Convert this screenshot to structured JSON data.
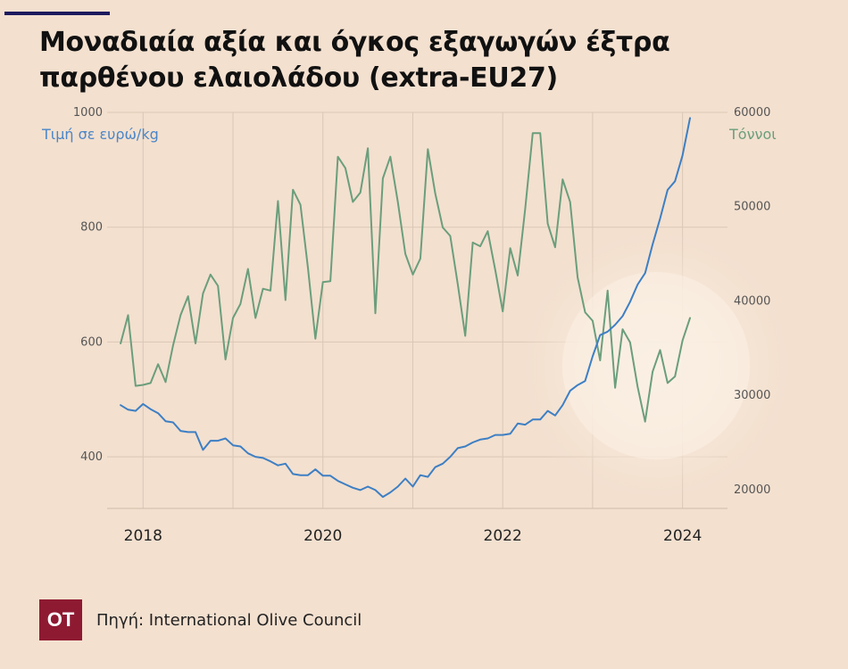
{
  "title": "Μοναδιαία αξία και όγκος εξαγωγών έξτρα παρθένου ελαιολάδου (extra-EU27)",
  "source": "Πηγή: International Olive Council",
  "logo_text": "ΟΤ",
  "colors": {
    "price": "#3d7fc4",
    "volume": "#6b9e7c",
    "background": "#f3e0cf",
    "logo": "#8e1a32",
    "rule": "#1c1a5e"
  },
  "chart_data": {
    "type": "line",
    "x_ticks": [
      "2018",
      "2020",
      "2022",
      "2024"
    ],
    "y_left": {
      "label": "Τιμή σε ευρώ/kg",
      "ticks": [
        "400",
        "600",
        "800",
        "1000"
      ],
      "range": [
        310,
        1000
      ]
    },
    "y_right": {
      "label": "Τόννοι",
      "ticks": [
        "20000",
        "30000",
        "40000",
        "50000",
        "60000"
      ],
      "range": [
        18000,
        60000
      ]
    },
    "grid": true,
    "series": [
      {
        "axis": "left",
        "color": "#3d7fc4",
        "points": [
          [
            "2017-10",
            490
          ],
          [
            "2017-11",
            482
          ],
          [
            "2017-12",
            480
          ],
          [
            "2018-01",
            492
          ],
          [
            "2018-02",
            483
          ],
          [
            "2018-03",
            476
          ],
          [
            "2018-04",
            462
          ],
          [
            "2018-05",
            460
          ],
          [
            "2018-06",
            445
          ],
          [
            "2018-07",
            443
          ],
          [
            "2018-08",
            443
          ],
          [
            "2018-09",
            412
          ],
          [
            "2018-10",
            428
          ],
          [
            "2018-11",
            428
          ],
          [
            "2018-12",
            432
          ],
          [
            "2019-01",
            420
          ],
          [
            "2019-02",
            418
          ],
          [
            "2019-03",
            406
          ],
          [
            "2019-04",
            400
          ],
          [
            "2019-05",
            398
          ],
          [
            "2019-06",
            392
          ],
          [
            "2019-07",
            385
          ],
          [
            "2019-08",
            388
          ],
          [
            "2019-09",
            370
          ],
          [
            "2019-10",
            368
          ],
          [
            "2019-11",
            368
          ],
          [
            "2019-12",
            378
          ],
          [
            "2020-01",
            367
          ],
          [
            "2020-02",
            367
          ],
          [
            "2020-03",
            358
          ],
          [
            "2020-04",
            352
          ],
          [
            "2020-05",
            346
          ],
          [
            "2020-06",
            342
          ],
          [
            "2020-07",
            348
          ],
          [
            "2020-08",
            342
          ],
          [
            "2020-09",
            330
          ],
          [
            "2020-10",
            338
          ],
          [
            "2020-11",
            348
          ],
          [
            "2020-12",
            362
          ],
          [
            "2021-01",
            348
          ],
          [
            "2021-02",
            368
          ],
          [
            "2021-03",
            365
          ],
          [
            "2021-04",
            382
          ],
          [
            "2021-05",
            388
          ],
          [
            "2021-06",
            400
          ],
          [
            "2021-07",
            415
          ],
          [
            "2021-08",
            418
          ],
          [
            "2021-09",
            425
          ],
          [
            "2021-10",
            430
          ],
          [
            "2021-11",
            432
          ],
          [
            "2021-12",
            438
          ],
          [
            "2022-01",
            438
          ],
          [
            "2022-02",
            440
          ],
          [
            "2022-03",
            458
          ],
          [
            "2022-04",
            456
          ],
          [
            "2022-05",
            465
          ],
          [
            "2022-06",
            465
          ],
          [
            "2022-07",
            480
          ],
          [
            "2022-08",
            472
          ],
          [
            "2022-09",
            490
          ],
          [
            "2022-10",
            515
          ],
          [
            "2022-11",
            525
          ],
          [
            "2022-12",
            532
          ],
          [
            "2023-01",
            575
          ],
          [
            "2023-02",
            612
          ],
          [
            "2023-03",
            618
          ],
          [
            "2023-04",
            630
          ],
          [
            "2023-05",
            645
          ],
          [
            "2023-06",
            670
          ],
          [
            "2023-07",
            700
          ],
          [
            "2023-08",
            720
          ],
          [
            "2023-09",
            770
          ],
          [
            "2023-10",
            815
          ],
          [
            "2023-11",
            865
          ],
          [
            "2023-12",
            880
          ],
          [
            "2024-01",
            925
          ],
          [
            "2024-02",
            990
          ]
        ]
      },
      {
        "axis": "right",
        "color": "#6b9e7c",
        "points": [
          [
            "2017-10",
            35500
          ],
          [
            "2017-11",
            38500
          ],
          [
            "2017-12",
            31000
          ],
          [
            "2018-01",
            31100
          ],
          [
            "2018-02",
            31300
          ],
          [
            "2018-03",
            33300
          ],
          [
            "2018-04",
            31400
          ],
          [
            "2018-05",
            35300
          ],
          [
            "2018-06",
            38500
          ],
          [
            "2018-07",
            40500
          ],
          [
            "2018-08",
            35500
          ],
          [
            "2018-09",
            40800
          ],
          [
            "2018-10",
            42800
          ],
          [
            "2018-11",
            41600
          ],
          [
            "2018-12",
            33800
          ],
          [
            "2019-01",
            38200
          ],
          [
            "2019-02",
            39700
          ],
          [
            "2019-03",
            43400
          ],
          [
            "2019-04",
            38200
          ],
          [
            "2019-05",
            41300
          ],
          [
            "2019-06",
            41100
          ],
          [
            "2019-07",
            50600
          ],
          [
            "2019-08",
            40100
          ],
          [
            "2019-09",
            51800
          ],
          [
            "2019-10",
            50200
          ],
          [
            "2019-11",
            43500
          ],
          [
            "2019-12",
            36000
          ],
          [
            "2020-01",
            42000
          ],
          [
            "2020-02",
            42100
          ],
          [
            "2020-03",
            55300
          ],
          [
            "2020-04",
            54100
          ],
          [
            "2020-05",
            50500
          ],
          [
            "2020-06",
            51500
          ],
          [
            "2020-07",
            56200
          ],
          [
            "2020-08",
            38700
          ],
          [
            "2020-09",
            53000
          ],
          [
            "2020-10",
            55300
          ],
          [
            "2020-11",
            50500
          ],
          [
            "2020-12",
            45000
          ],
          [
            "2021-01",
            42800
          ],
          [
            "2021-02",
            44500
          ],
          [
            "2021-03",
            56100
          ],
          [
            "2021-04",
            51400
          ],
          [
            "2021-05",
            47800
          ],
          [
            "2021-06",
            46900
          ],
          [
            "2021-07",
            41800
          ],
          [
            "2021-08",
            36300
          ],
          [
            "2021-09",
            46200
          ],
          [
            "2021-10",
            45800
          ],
          [
            "2021-11",
            47400
          ],
          [
            "2021-12",
            43300
          ],
          [
            "2022-01",
            38900
          ],
          [
            "2022-02",
            45600
          ],
          [
            "2022-03",
            42700
          ],
          [
            "2022-04",
            49800
          ],
          [
            "2022-05",
            57800
          ],
          [
            "2022-06",
            57800
          ],
          [
            "2022-07",
            48200
          ],
          [
            "2022-08",
            45700
          ],
          [
            "2022-09",
            52900
          ],
          [
            "2022-10",
            50500
          ],
          [
            "2022-11",
            42500
          ],
          [
            "2022-12",
            38800
          ],
          [
            "2023-01",
            37900
          ],
          [
            "2023-02",
            33700
          ],
          [
            "2023-03",
            41100
          ],
          [
            "2023-04",
            30800
          ],
          [
            "2023-05",
            37000
          ],
          [
            "2023-06",
            35600
          ],
          [
            "2023-07",
            30900
          ],
          [
            "2023-08",
            27200
          ],
          [
            "2023-09",
            32500
          ],
          [
            "2023-10",
            34800
          ],
          [
            "2023-11",
            31300
          ],
          [
            "2023-12",
            32000
          ],
          [
            "2024-01",
            35800
          ],
          [
            "2024-02",
            38200
          ]
        ]
      }
    ]
  }
}
